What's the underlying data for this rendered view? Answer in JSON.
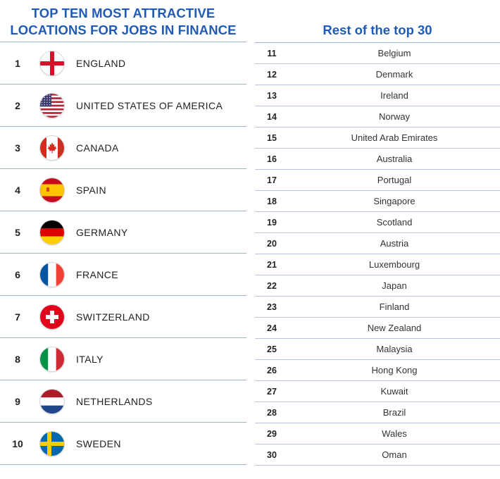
{
  "left_table": {
    "title_line1": "TOP TEN MOST ATTRACTIVE",
    "title_line2": "LOCATIONS FOR JOBS IN FINANCE",
    "rows": [
      {
        "rank": "1",
        "country": "ENGLAND",
        "flag": "england-flag-icon"
      },
      {
        "rank": "2",
        "country": "UNITED STATES OF AMERICA",
        "flag": "usa-flag-icon"
      },
      {
        "rank": "3",
        "country": "CANADA",
        "flag": "canada-flag-icon"
      },
      {
        "rank": "4",
        "country": "SPAIN",
        "flag": "spain-flag-icon"
      },
      {
        "rank": "5",
        "country": "GERMANY",
        "flag": "germany-flag-icon"
      },
      {
        "rank": "6",
        "country": "FRANCE",
        "flag": "france-flag-icon"
      },
      {
        "rank": "7",
        "country": "SWITZERLAND",
        "flag": "switzerland-flag-icon"
      },
      {
        "rank": "8",
        "country": "ITALY",
        "flag": "italy-flag-icon"
      },
      {
        "rank": "9",
        "country": "NETHERLANDS",
        "flag": "netherlands-flag-icon"
      },
      {
        "rank": "10",
        "country": "SWEDEN",
        "flag": "sweden-flag-icon"
      }
    ]
  },
  "right_table": {
    "title": "Rest of the top 30",
    "rows": [
      {
        "rank": "11",
        "country": "Belgium"
      },
      {
        "rank": "12",
        "country": "Denmark"
      },
      {
        "rank": "13",
        "country": "Ireland"
      },
      {
        "rank": "14",
        "country": "Norway"
      },
      {
        "rank": "15",
        "country": "United Arab Emirates"
      },
      {
        "rank": "16",
        "country": "Australia"
      },
      {
        "rank": "17",
        "country": "Portugal"
      },
      {
        "rank": "18",
        "country": "Singapore"
      },
      {
        "rank": "19",
        "country": "Scotland"
      },
      {
        "rank": "20",
        "country": "Austria"
      },
      {
        "rank": "21",
        "country": "Luxembourg"
      },
      {
        "rank": "22",
        "country": "Japan"
      },
      {
        "rank": "23",
        "country": "Finland"
      },
      {
        "rank": "24",
        "country": "New Zealand"
      },
      {
        "rank": "25",
        "country": "Malaysia"
      },
      {
        "rank": "26",
        "country": "Hong Kong"
      },
      {
        "rank": "27",
        "country": "Kuwait"
      },
      {
        "rank": "28",
        "country": "Brazil"
      },
      {
        "rank": "29",
        "country": "Wales"
      },
      {
        "rank": "30",
        "country": "Oman"
      }
    ]
  },
  "colors": {
    "title_blue": "#1f5bb5",
    "rule": "#9fb3cf"
  },
  "chart_data": {
    "type": "table",
    "tables": [
      {
        "title": "TOP TEN MOST ATTRACTIVE LOCATIONS FOR JOBS IN FINANCE",
        "columns": [
          "rank",
          "country"
        ],
        "rows": [
          [
            1,
            "ENGLAND"
          ],
          [
            2,
            "UNITED STATES OF AMERICA"
          ],
          [
            3,
            "CANADA"
          ],
          [
            4,
            "SPAIN"
          ],
          [
            5,
            "GERMANY"
          ],
          [
            6,
            "FRANCE"
          ],
          [
            7,
            "SWITZERLAND"
          ],
          [
            8,
            "ITALY"
          ],
          [
            9,
            "NETHERLANDS"
          ],
          [
            10,
            "SWEDEN"
          ]
        ]
      },
      {
        "title": "Rest of the top 30",
        "columns": [
          "rank",
          "country"
        ],
        "rows": [
          [
            11,
            "Belgium"
          ],
          [
            12,
            "Denmark"
          ],
          [
            13,
            "Ireland"
          ],
          [
            14,
            "Norway"
          ],
          [
            15,
            "United Arab Emirates"
          ],
          [
            16,
            "Australia"
          ],
          [
            17,
            "Portugal"
          ],
          [
            18,
            "Singapore"
          ],
          [
            19,
            "Scotland"
          ],
          [
            20,
            "Austria"
          ],
          [
            21,
            "Luxembourg"
          ],
          [
            22,
            "Japan"
          ],
          [
            23,
            "Finland"
          ],
          [
            24,
            "New Zealand"
          ],
          [
            25,
            "Malaysia"
          ],
          [
            26,
            "Hong Kong"
          ],
          [
            27,
            "Kuwait"
          ],
          [
            28,
            "Brazil"
          ],
          [
            29,
            "Wales"
          ],
          [
            30,
            "Oman"
          ]
        ]
      }
    ]
  }
}
